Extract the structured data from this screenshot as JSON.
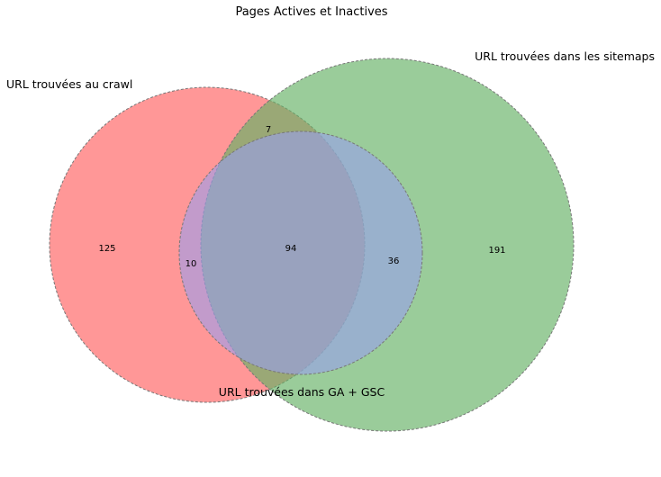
{
  "chart_data": {
    "type": "venn",
    "title": "Pages Actives et Inactives",
    "sets": [
      {
        "name": "URL trouvées au crawl",
        "color": "#ff9999"
      },
      {
        "name": "URL trouvées dans les sitemaps",
        "color": "#99cc99"
      },
      {
        "name": "URL trouvées dans GA + GSC",
        "color": "#99bbdd"
      }
    ],
    "regions": [
      {
        "sets": [
          "crawl"
        ],
        "value": 125
      },
      {
        "sets": [
          "sitemaps"
        ],
        "value": 191
      },
      {
        "sets": [
          "ga_gsc"
        ],
        "value": 36
      },
      {
        "sets": [
          "crawl",
          "sitemaps"
        ],
        "value": 7
      },
      {
        "sets": [
          "crawl",
          "ga_gsc"
        ],
        "value": 10
      },
      {
        "sets": [
          "crawl",
          "sitemaps",
          "ga_gsc"
        ],
        "value": 94
      }
    ]
  }
}
